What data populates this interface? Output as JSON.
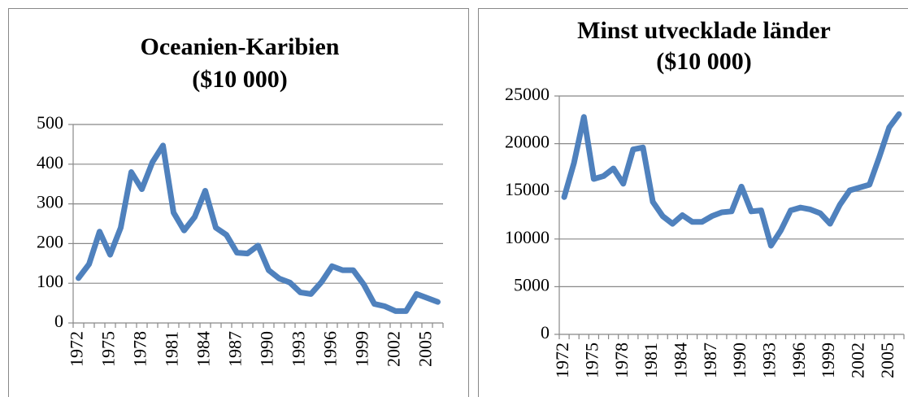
{
  "chart_data": [
    {
      "type": "line",
      "title": [
        "Oceanien-Karibien",
        "($10 000)"
      ],
      "categories": [
        "1972",
        null,
        null,
        "1975",
        null,
        null,
        "1978",
        null,
        null,
        "1981",
        null,
        null,
        "1984",
        null,
        null,
        "1987",
        null,
        null,
        "1990",
        null,
        null,
        "1993",
        null,
        null,
        "1996",
        null,
        null,
        "1999",
        null,
        null,
        "2002",
        null,
        null,
        "2005",
        null
      ],
      "series": [
        {
          "name": "Oceanien-Karibien",
          "color": "#4f81bd",
          "values": [
            113,
            148,
            230,
            172,
            240,
            380,
            337,
            405,
            447,
            278,
            233,
            267,
            333,
            240,
            222,
            177,
            175,
            195,
            133,
            112,
            102,
            77,
            73,
            103,
            143,
            133,
            133,
            97,
            48,
            42,
            30,
            30,
            73,
            63,
            53
          ]
        }
      ],
      "ylim": [
        0,
        500
      ],
      "yticks": [
        0,
        100,
        200,
        300,
        400,
        500
      ],
      "grid": true
    },
    {
      "type": "line",
      "title": [
        "Minst utvecklade länder",
        "($10 000)"
      ],
      "categories": [
        "1972",
        null,
        null,
        "1975",
        null,
        null,
        "1978",
        null,
        null,
        "1981",
        null,
        null,
        "1984",
        null,
        null,
        "1987",
        null,
        null,
        "1990",
        null,
        null,
        "1993",
        null,
        null,
        "1996",
        null,
        null,
        "1999",
        null,
        null,
        "2002",
        null,
        null,
        "2005",
        null
      ],
      "series": [
        {
          "name": "Minst utvecklade länder",
          "color": "#4f81bd",
          "values": [
            14400,
            18000,
            22800,
            16300,
            16600,
            17400,
            15800,
            19400,
            19600,
            13900,
            12400,
            11600,
            12500,
            11800,
            11800,
            12400,
            12800,
            12900,
            15500,
            12900,
            13000,
            9300,
            10900,
            13000,
            13300,
            13100,
            12700,
            11600,
            13600,
            15100,
            15400,
            15700,
            18600,
            21700,
            23100
          ]
        }
      ],
      "ylim": [
        0,
        25000
      ],
      "yticks": [
        0,
        5000,
        10000,
        15000,
        20000,
        25000
      ],
      "grid": true
    }
  ]
}
